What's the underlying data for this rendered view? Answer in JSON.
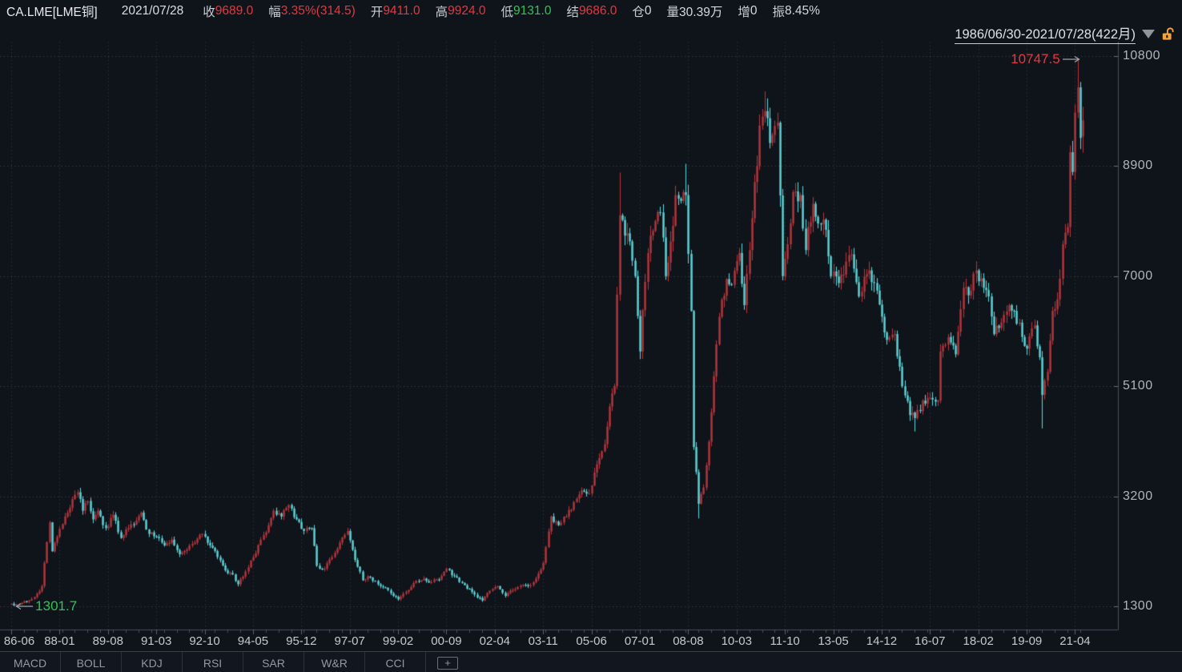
{
  "header": {
    "symbol": "CA.LME[LME铜]",
    "date": "2021/07/28",
    "fields": [
      {
        "label": "收",
        "value": "9689.0",
        "color": "red"
      },
      {
        "label": "幅",
        "value": "3.35%(314.5)",
        "color": "red"
      },
      {
        "label": "开",
        "value": "9411.0",
        "color": "red"
      },
      {
        "label": "高",
        "value": "9924.0",
        "color": "red"
      },
      {
        "label": "低",
        "value": "9131.0",
        "color": "green"
      },
      {
        "label": "结",
        "value": "9686.0",
        "color": "red"
      },
      {
        "label": "仓",
        "value": "0",
        "color": "white"
      },
      {
        "label": "量",
        "value": "30.39万",
        "color": "white"
      },
      {
        "label": "增",
        "value": "0",
        "color": "white"
      },
      {
        "label": "振",
        "value": "8.45%",
        "color": "white"
      }
    ]
  },
  "range_selector": {
    "label": "1986/06/30-2021/07/28(422月)",
    "dropdown_icon": "triangle-down",
    "lock_icon": "unlocked-padlock",
    "lock_color": "#f2a33c"
  },
  "indicator_tabs": {
    "tabs": [
      "MACD",
      "BOLL",
      "KDJ",
      "RSI",
      "SAR",
      "W&R",
      "CCI"
    ],
    "add_button": "+"
  },
  "chart_data": {
    "type": "candlestick",
    "title": "CA.LME LME Copper, monthly candles",
    "x_range": {
      "start": "1986-06",
      "end": "2021-07",
      "months": 422
    },
    "y_axis": {
      "min": 1300,
      "max": 10800,
      "ticks": [
        10800,
        8900,
        7000,
        5100,
        3200,
        1300
      ]
    },
    "x_tick_labels": [
      "86-06",
      "88-01",
      "89-08",
      "91-03",
      "92-10",
      "94-05",
      "95-12",
      "97-07",
      "99-02",
      "00-09",
      "02-04",
      "03-11",
      "05-06",
      "07-01",
      "08-08",
      "10-03",
      "11-10",
      "13-05",
      "14-12",
      "16-07",
      "18-02",
      "19-09",
      "21-04"
    ],
    "x_tick_interval_months": 19,
    "grid": "dotted",
    "legend": "none",
    "colors": {
      "up": "#b0353c",
      "down": "#5ad1d4",
      "grid": "rgba(165,175,190,0.25)",
      "axis": "#494f5c",
      "bg": "#0f131a"
    },
    "annotations": [
      {
        "text": "10747.5",
        "price": 10747.5,
        "month": "2021-05",
        "color": "#e5383f",
        "arrow": "right"
      },
      {
        "text": "1301.7",
        "price": 1301.7,
        "month": "1986-07",
        "color": "#2ec655",
        "arrow": "left"
      }
    ],
    "extremes": {
      "max_high": 10747.5,
      "min_low": 1301.7
    },
    "last_candle": {
      "open": 9411.0,
      "high": 9924.0,
      "low": 9131.0,
      "close": 9689.0
    },
    "sampling": "monthly closes read from chart at keypoints; intermediate months linearly interpolated",
    "keypoints_monthly_close": [
      [
        "1986-06",
        1345
      ],
      [
        "1986-07",
        1315
      ],
      [
        "1986-10",
        1360
      ],
      [
        "1987-01",
        1400
      ],
      [
        "1987-04",
        1520
      ],
      [
        "1987-06",
        1650
      ],
      [
        "1987-09",
        2750
      ],
      [
        "1987-10",
        2250
      ],
      [
        "1987-12",
        2500
      ],
      [
        "1988-03",
        2850
      ],
      [
        "1988-06",
        3150
      ],
      [
        "1988-08",
        3270
      ],
      [
        "1988-10",
        2950
      ],
      [
        "1988-12",
        3120
      ],
      [
        "1989-02",
        2800
      ],
      [
        "1989-04",
        2950
      ],
      [
        "1989-07",
        2650
      ],
      [
        "1989-10",
        2880
      ],
      [
        "1990-01",
        2480
      ],
      [
        "1990-04",
        2650
      ],
      [
        "1990-07",
        2780
      ],
      [
        "1990-09",
        2920
      ],
      [
        "1990-12",
        2550
      ],
      [
        "1991-03",
        2500
      ],
      [
        "1991-06",
        2350
      ],
      [
        "1991-09",
        2450
      ],
      [
        "1991-12",
        2200
      ],
      [
        "1992-03",
        2280
      ],
      [
        "1992-06",
        2400
      ],
      [
        "1992-09",
        2550
      ],
      [
        "1992-12",
        2350
      ],
      [
        "1993-03",
        2150
      ],
      [
        "1993-06",
        1920
      ],
      [
        "1993-09",
        1850
      ],
      [
        "1993-11",
        1680
      ],
      [
        "1994-02",
        1900
      ],
      [
        "1994-05",
        2150
      ],
      [
        "1994-08",
        2450
      ],
      [
        "1994-11",
        2700
      ],
      [
        "1995-01",
        2950
      ],
      [
        "1995-04",
        2850
      ],
      [
        "1995-07",
        3050
      ],
      [
        "1995-10",
        2800
      ],
      [
        "1996-01",
        2600
      ],
      [
        "1996-04",
        2650
      ],
      [
        "1996-06",
        2000
      ],
      [
        "1996-09",
        1950
      ],
      [
        "1996-12",
        2150
      ],
      [
        "1997-03",
        2400
      ],
      [
        "1997-06",
        2600
      ],
      [
        "1997-09",
        2100
      ],
      [
        "1997-12",
        1750
      ],
      [
        "1998-03",
        1800
      ],
      [
        "1998-06",
        1680
      ],
      [
        "1998-09",
        1620
      ],
      [
        "1998-12",
        1480
      ],
      [
        "1999-02",
        1420
      ],
      [
        "1999-05",
        1550
      ],
      [
        "1999-08",
        1700
      ],
      [
        "1999-12",
        1780
      ],
      [
        "2000-03",
        1720
      ],
      [
        "2000-06",
        1760
      ],
      [
        "2000-09",
        1950
      ],
      [
        "2000-12",
        1820
      ],
      [
        "2001-03",
        1700
      ],
      [
        "2001-06",
        1600
      ],
      [
        "2001-09",
        1450
      ],
      [
        "2001-11",
        1400
      ],
      [
        "2002-02",
        1570
      ],
      [
        "2002-05",
        1650
      ],
      [
        "2002-08",
        1480
      ],
      [
        "2002-11",
        1580
      ],
      [
        "2003-02",
        1660
      ],
      [
        "2003-05",
        1650
      ],
      [
        "2003-08",
        1780
      ],
      [
        "2003-11",
        2050
      ],
      [
        "2004-02",
        2850
      ],
      [
        "2004-05",
        2700
      ],
      [
        "2004-08",
        2850
      ],
      [
        "2004-11",
        3100
      ],
      [
        "2005-02",
        3300
      ],
      [
        "2005-05",
        3250
      ],
      [
        "2005-08",
        3750
      ],
      [
        "2005-11",
        4100
      ],
      [
        "2006-01",
        4750
      ],
      [
        "2006-03",
        5100
      ],
      [
        "2006-05",
        8050
      ],
      [
        "2006-07",
        7700
      ],
      [
        "2006-09",
        7600
      ],
      [
        "2006-11",
        7000
      ],
      [
        "2007-01",
        5700
      ],
      [
        "2007-03",
        6900
      ],
      [
        "2007-05",
        7700
      ],
      [
        "2007-07",
        7950
      ],
      [
        "2007-09",
        8100
      ],
      [
        "2007-11",
        7000
      ],
      [
        "2008-01",
        7600
      ],
      [
        "2008-03",
        8400
      ],
      [
        "2008-05",
        8300
      ],
      [
        "2008-07",
        8400
      ],
      [
        "2008-09",
        6400
      ],
      [
        "2008-10",
        4050
      ],
      [
        "2008-12",
        3070
      ],
      [
        "2009-02",
        3350
      ],
      [
        "2009-05",
        4650
      ],
      [
        "2009-08",
        6300
      ],
      [
        "2009-11",
        6950
      ],
      [
        "2010-01",
        6850
      ],
      [
        "2010-04",
        7400
      ],
      [
        "2010-06",
        6500
      ],
      [
        "2010-09",
        8000
      ],
      [
        "2010-12",
        9600
      ],
      [
        "2011-02",
        9850
      ],
      [
        "2011-04",
        9300
      ],
      [
        "2011-07",
        9650
      ],
      [
        "2011-09",
        7000
      ],
      [
        "2011-11",
        7550
      ],
      [
        "2012-01",
        8450
      ],
      [
        "2012-04",
        8400
      ],
      [
        "2012-06",
        7450
      ],
      [
        "2012-09",
        8250
      ],
      [
        "2012-12",
        7900
      ],
      [
        "2013-02",
        7800
      ],
      [
        "2013-04",
        7000
      ],
      [
        "2013-07",
        6880
      ],
      [
        "2013-10",
        7250
      ],
      [
        "2013-12",
        7375
      ],
      [
        "2014-03",
        6650
      ],
      [
        "2014-07",
        7100
      ],
      [
        "2014-10",
        6750
      ],
      [
        "2014-12",
        6300
      ],
      [
        "2015-02",
        5900
      ],
      [
        "2015-05",
        6000
      ],
      [
        "2015-08",
        5100
      ],
      [
        "2015-11",
        4600
      ],
      [
        "2016-01",
        4550
      ],
      [
        "2016-04",
        4850
      ],
      [
        "2016-07",
        4900
      ],
      [
        "2016-10",
        4850
      ],
      [
        "2016-11",
        5700
      ],
      [
        "2017-02",
        5950
      ],
      [
        "2017-05",
        5650
      ],
      [
        "2017-08",
        6800
      ],
      [
        "2017-11",
        6750
      ],
      [
        "2018-01",
        7100
      ],
      [
        "2018-04",
        6800
      ],
      [
        "2018-06",
        6650
      ],
      [
        "2018-08",
        6000
      ],
      [
        "2018-11",
        6200
      ],
      [
        "2019-02",
        6500
      ],
      [
        "2019-04",
        6400
      ],
      [
        "2019-07",
        5950
      ],
      [
        "2019-09",
        5750
      ],
      [
        "2019-12",
        6150
      ],
      [
        "2020-02",
        5600
      ],
      [
        "2020-03",
        4950
      ],
      [
        "2020-05",
        5350
      ],
      [
        "2020-07",
        6400
      ],
      [
        "2020-09",
        6600
      ],
      [
        "2020-11",
        7550
      ],
      [
        "2020-12",
        7750
      ],
      [
        "2021-01",
        7850
      ],
      [
        "2021-02",
        9140
      ],
      [
        "2021-03",
        8800
      ],
      [
        "2021-04",
        9825
      ],
      [
        "2021-05",
        10260
      ],
      [
        "2021-06",
        9385
      ],
      [
        "2021-07",
        9689
      ]
    ],
    "overrides": {
      "1986-07": {
        "low": 1301.7
      },
      "2006-05": {
        "high": 8790
      },
      "2008-07": {
        "high": 8940
      },
      "2008-12": {
        "low": 2817
      },
      "2011-02": {
        "high": 10190
      },
      "2016-01": {
        "low": 4318
      },
      "2020-03": {
        "low": 4371
      },
      "2021-05": {
        "high": 10747.5
      },
      "2021-07": {
        "open": 9411.0,
        "high": 9924.0,
        "low": 9131.0,
        "close": 9689.0
      }
    }
  }
}
